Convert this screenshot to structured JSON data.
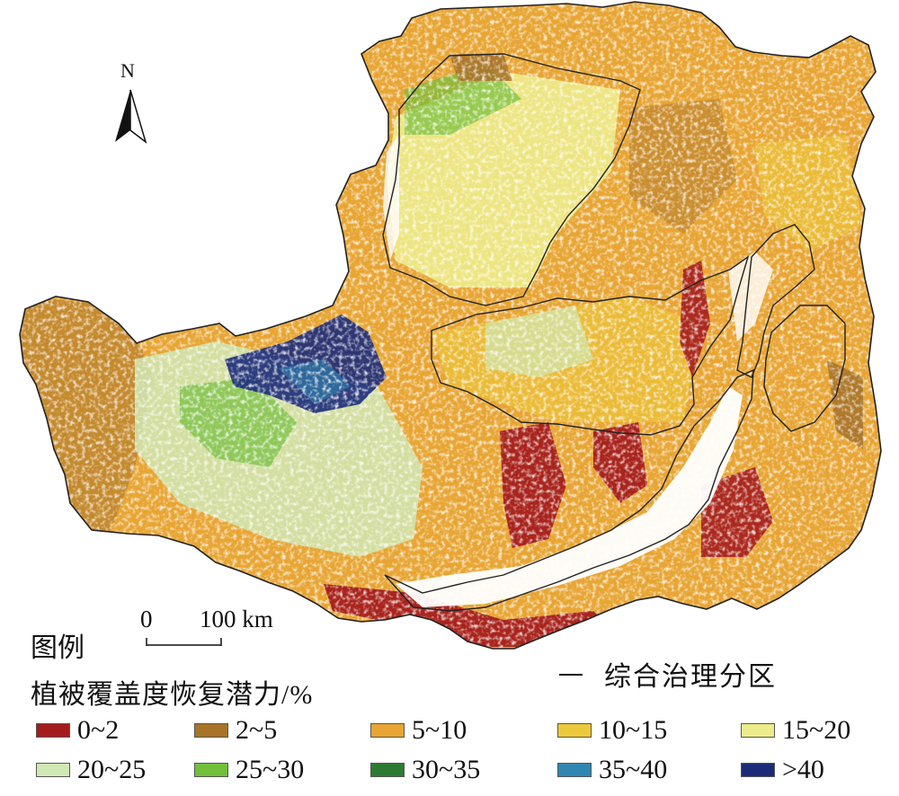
{
  "map": {
    "north_label": "N",
    "scale": {
      "zero": "0",
      "value": "100 km"
    },
    "legend_title": "图例",
    "legend_subtitle": "植被覆盖度恢复潜力/%",
    "zoning_label": "综合治理分区",
    "boundary_color": "#222222",
    "legend": [
      {
        "label": "0~2",
        "color": "#a51c1c"
      },
      {
        "label": "2~5",
        "color": "#a8742a"
      },
      {
        "label": "5~10",
        "color": "#e8a533"
      },
      {
        "label": "10~15",
        "color": "#ecc93c"
      },
      {
        "label": "15~20",
        "color": "#edec8a"
      },
      {
        "label": "20~25",
        "color": "#cfe8b4"
      },
      {
        "label": "25~30",
        "color": "#72bf3a"
      },
      {
        "label": "30~35",
        "color": "#2d7b32"
      },
      {
        "label": "35~40",
        "color": "#2f86b0"
      },
      {
        "label": ">40",
        "color": "#1b2b7a"
      }
    ]
  }
}
